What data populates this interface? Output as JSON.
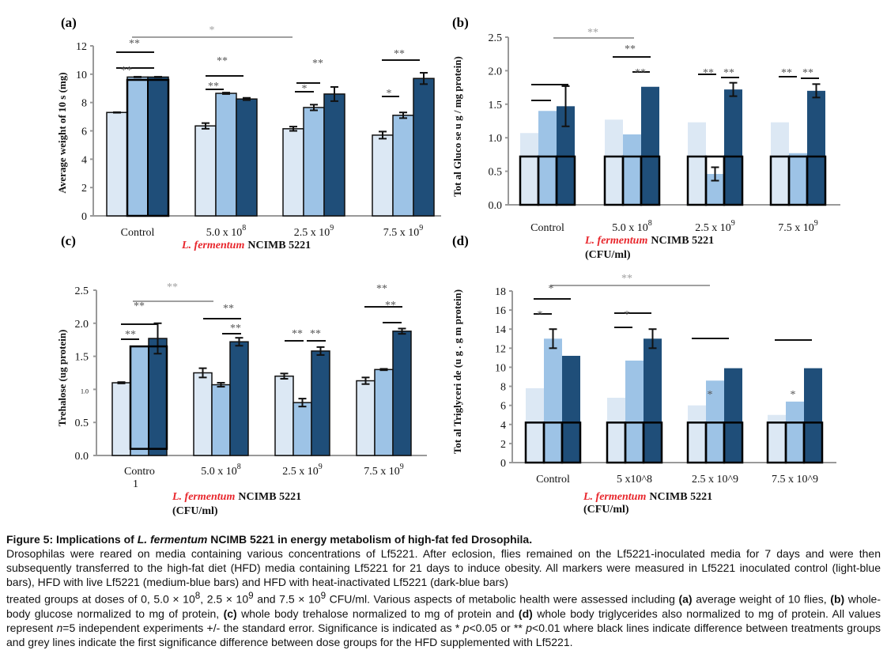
{
  "colors": {
    "light": "#dce8f4",
    "medium": "#9dc3e6",
    "dark": "#1f4e79",
    "red": "#e8262c",
    "axis": "#999999",
    "grey_sig": "#a0a0a0"
  },
  "legend_meaning": [
    "Lf5221 inoculated control (light-blue bars)",
    "HFD with live Lf5221 (medium-blue bars)",
    "HFD with heat-inactivated Lf5221 (dark-blue bars)"
  ],
  "chart_data": [
    {
      "id": "a",
      "panel_label": "(a)",
      "type": "bar",
      "ylabel": "Average weight of 10 s      (mg)",
      "ylim": [
        0,
        12
      ],
      "yticks": [
        "0",
        "2",
        "4",
        "6",
        "8",
        "10",
        "12"
      ],
      "categories": [
        "Control",
        "5.0 x 10",
        "2.5 x 10",
        "7.5 x 10"
      ],
      "category_superscripts": [
        "",
        "8",
        "9",
        "9"
      ],
      "xlabel_red": "L. fermentum",
      "xlabel_black": "NCIMB 5221",
      "series": [
        {
          "name": "light-blue",
          "values": [
            7.3,
            6.35,
            6.15,
            5.7
          ],
          "errors": [
            0.02,
            0.2,
            0.15,
            0.25
          ]
        },
        {
          "name": "medium-blue",
          "values": [
            9.8,
            8.65,
            7.65,
            7.1
          ],
          "errors": [
            0.02,
            0.05,
            0.2,
            0.2
          ]
        },
        {
          "name": "dark-blue",
          "values": [
            9.8,
            8.25,
            8.6,
            9.7
          ],
          "errors": [
            0.02,
            0.08,
            0.5,
            0.4
          ]
        }
      ],
      "significance": [
        {
          "text": "*",
          "kind": "grey"
        },
        {
          "text": "**",
          "kind": "black"
        }
      ]
    },
    {
      "id": "b",
      "panel_label": "(b)",
      "type": "bar",
      "ylabel": "Tot al   Gluco se    u     g    / mg protein)",
      "ylim": [
        0,
        2.5
      ],
      "yticks": [
        "0.0",
        "0.5",
        "1.0",
        "1.5",
        "2.0",
        "2.5"
      ],
      "categories": [
        "Control",
        "5.0 x 10",
        "2.5 x 10",
        "7.5 x 10"
      ],
      "category_superscripts": [
        "",
        "8",
        "9",
        "9"
      ],
      "xlabel_red": "L. fermentum",
      "xlabel_black": "NCIMB 5221",
      "xlabel_unit": "(CFU/ml)",
      "series": [
        {
          "name": "light-blue",
          "values": [
            1.07,
            1.27,
            1.23,
            1.23
          ],
          "errors": [
            0,
            0,
            0,
            0
          ]
        },
        {
          "name": "medium-blue",
          "values": [
            1.4,
            1.05,
            0.46,
            0.77
          ],
          "errors": [
            0,
            0,
            0.1,
            0
          ]
        },
        {
          "name": "dark-blue",
          "values": [
            1.47,
            1.76,
            1.72,
            1.7
          ],
          "errors": [
            0.3,
            0,
            0.1,
            0.1
          ]
        }
      ],
      "outline_box_value": 0.72,
      "significance": [
        {
          "text": "**",
          "kind": "grey"
        },
        {
          "text": "**",
          "kind": "black"
        }
      ]
    },
    {
      "id": "c",
      "panel_label": "(c)",
      "type": "bar",
      "ylabel": "Trehalose     (ug      protein)",
      "ylim": [
        0,
        2.5
      ],
      "yticks": [
        "0.0",
        "0.5",
        "1.0",
        "1.5",
        "2.0",
        "2.5"
      ],
      "categories": [
        "Contro 1",
        "5.0 x 10",
        "2.5 x 10",
        "7.5 x 10"
      ],
      "category_superscripts": [
        "",
        "8",
        "9",
        "9"
      ],
      "xlabel_red": "L. fermentum",
      "xlabel_black": "NCIMB 5221",
      "xlabel_unit": "(CFU/ml)",
      "series": [
        {
          "name": "light-blue",
          "values": [
            1.1,
            1.25,
            1.2,
            1.13
          ],
          "errors": [
            0.01,
            0.07,
            0.04,
            0.05
          ]
        },
        {
          "name": "medium-blue",
          "values": [
            1.65,
            1.07,
            0.8,
            1.3
          ],
          "errors": [
            0,
            0.03,
            0.06,
            0.01
          ]
        },
        {
          "name": "dark-blue",
          "values": [
            1.77,
            1.72,
            1.58,
            1.88
          ],
          "errors": [
            0.23,
            0.06,
            0.06,
            0.04
          ]
        }
      ],
      "significance": [
        {
          "text": "**",
          "kind": "grey"
        },
        {
          "text": "**",
          "kind": "black"
        }
      ]
    },
    {
      "id": "d",
      "panel_label": "(d)",
      "type": "bar",
      "ylabel": "Tot al   Triglyceri de   (u    g  .  g    m    protein)",
      "ylim": [
        0,
        18
      ],
      "yticks": [
        "0",
        "2",
        "4",
        "6",
        "8",
        "10",
        "12",
        "14",
        "16",
        "18"
      ],
      "categories": [
        "Control",
        "5 x10^8",
        "2.5 x 10^9",
        "7.5 x 10^9"
      ],
      "category_superscripts": [
        "",
        "",
        "",
        ""
      ],
      "xlabel_red": "L. fermentum",
      "xlabel_black": "NCIMB 5221",
      "xlabel_unit": "(CFU/ml)",
      "series": [
        {
          "name": "light-blue",
          "values": [
            7.8,
            6.8,
            6.0,
            5.0
          ],
          "errors": [
            0,
            0,
            0,
            0
          ]
        },
        {
          "name": "medium-blue",
          "values": [
            13.0,
            10.7,
            8.6,
            6.4
          ],
          "errors": [
            1.0,
            0,
            0,
            0
          ]
        },
        {
          "name": "dark-blue",
          "values": [
            11.2,
            13.0,
            9.9,
            9.9
          ],
          "errors": [
            0,
            1.0,
            0,
            0
          ]
        }
      ],
      "outline_box_value": 4.2,
      "significance": [
        {
          "text": "**",
          "kind": "grey"
        },
        {
          "text": "*",
          "kind": "black"
        }
      ]
    }
  ],
  "caption": {
    "title_prefix": "Figure 5: Implications of ",
    "title_italic": "L. fermentum",
    "title_suffix": " NCIMB 5221 in energy metabolism of high-fat fed Drosophila.",
    "line1": "Drosophilas were reared on media containing various concentrations of Lf5221. After eclosion, flies remained on the Lf5221-inoculated media for 7 days and were then subsequently transferred to the high-fat diet (HFD) media containing Lf5221 for 21 days to induce obesity. All markers were measured in Lf5221 inoculated control (light-blue bars), HFD with live Lf5221 (medium-blue bars) and HFD with heat-inactivated Lf5221 (dark-blue bars)",
    "line2_a": "treated groups at doses of 0, 5.0 × 10",
    "line2_sup1": "8",
    "line2_b": ", 2.5 × 10",
    "line2_sup2": "9",
    "line2_c": " and 7.5 × 10",
    "line2_sup3": "9",
    "line2_d": " CFU/ml. Various aspects of metabolic health were assessed including ",
    "a_label": "(a)",
    "a_text": " average weight of 10 flies, ",
    "b_label": "(b)",
    "b_text": " whole-body glucose normalized to mg of protein, ",
    "c_label": "(c)",
    "c_text": " whole body trehalose normalized to mg of protein and ",
    "d_label": "(d)",
    "d_text": " whole body triglycerides also normalized to mg of protein. All values represent ",
    "n_italic": "n",
    "n_text": "=5 independent experiments +/- the standard error. Significance is indicated as * ",
    "p1": "p",
    "p1_text": "<0.05 or ** ",
    "p2": "p",
    "p2_text": "<0.01 where black lines indicate difference between treatments groups and grey lines indicate the first significance difference between dose groups for the HFD supplemented with Lf5221."
  }
}
